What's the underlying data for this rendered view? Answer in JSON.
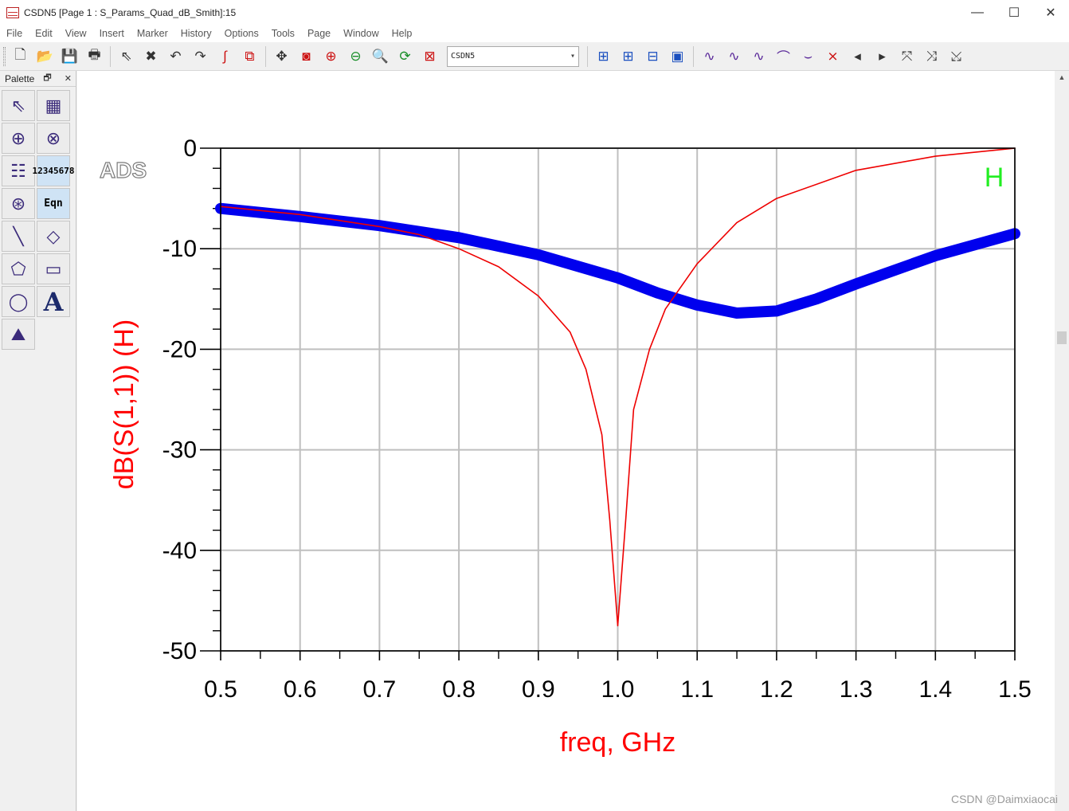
{
  "window": {
    "title": "CSDN5 [Page 1 : S_Params_Quad_dB_Smith]:15",
    "minimize": "—",
    "maximize": "☐",
    "close": "✕"
  },
  "menu": [
    "File",
    "Edit",
    "View",
    "Insert",
    "Marker",
    "History",
    "Options",
    "Tools",
    "Page",
    "Window",
    "Help"
  ],
  "toolbar": {
    "dataset": "CSDN5",
    "icons": [
      "new-icon",
      "open-icon",
      "save-icon",
      "print-icon",
      "select-icon",
      "delete-icon",
      "undo-icon",
      "redo-icon",
      "trace-icon",
      "plot-options-icon",
      "pan-icon",
      "zoom-area-icon",
      "zoom-in-icon",
      "zoom-out-icon",
      "zoom-icon",
      "refresh-icon",
      "cancel-icon",
      "view-all-icon",
      "zoom-plus-icon",
      "zoom-minus-icon",
      "zoom-window-icon",
      "marker-icon",
      "marker-peak-icon",
      "marker-min-icon",
      "marker-max-icon",
      "marker-valley-icon",
      "marker-delta-icon",
      "prev-icon",
      "next-icon",
      "trace-a-icon",
      "trace-b-icon",
      "trace-c-icon"
    ]
  },
  "palette": {
    "title": "Palette",
    "float": "🗗",
    "close": "✕",
    "number_icon": [
      "1234",
      "5678"
    ],
    "eqn_label": "Eqn",
    "text_tool": "A"
  },
  "logo": "ADS",
  "watermark": "CSDN @Daimxiaocai",
  "chart_data": {
    "type": "line",
    "xlabel": "freq, GHz",
    "ylabel": "dB(S(1,1))  (H)",
    "legend": "H",
    "xlim": [
      0.5,
      1.5
    ],
    "ylim": [
      -50,
      0
    ],
    "xticks": [
      0.5,
      0.6,
      0.7,
      0.8,
      0.9,
      1.0,
      1.1,
      1.2,
      1.3,
      1.4,
      1.5
    ],
    "xtick_labels": [
      "0.5",
      "0.6",
      "0.7",
      "0.8",
      "0.9",
      "1.0",
      "1.1",
      "1.2",
      "1.3",
      "1.4",
      "1.5"
    ],
    "yticks": [
      0,
      -10,
      -20,
      -30,
      -40,
      -50
    ],
    "ytick_labels": [
      "0",
      "-10",
      "-20",
      "-30",
      "-40",
      "-50"
    ],
    "grid": true,
    "colors": {
      "axis_label": "#ff0000",
      "legend": "#22ee22",
      "grid": "#bfbfbf"
    },
    "series": [
      {
        "color": "#0000ee",
        "width": "thick",
        "x": [
          0.5,
          0.6,
          0.7,
          0.8,
          0.9,
          1.0,
          1.05,
          1.1,
          1.15,
          1.2,
          1.25,
          1.3,
          1.4,
          1.5
        ],
        "y": [
          -6.0,
          -6.8,
          -7.7,
          -8.9,
          -10.6,
          -12.9,
          -14.4,
          -15.6,
          -16.4,
          -16.2,
          -15.0,
          -13.5,
          -10.7,
          -8.5
        ]
      },
      {
        "color": "#ee0000",
        "width": "thin",
        "x": [
          0.5,
          0.6,
          0.7,
          0.75,
          0.8,
          0.85,
          0.9,
          0.94,
          0.96,
          0.98,
          0.99,
          1.0,
          1.01,
          1.02,
          1.04,
          1.06,
          1.1,
          1.15,
          1.2,
          1.3,
          1.4,
          1.5
        ],
        "y": [
          -5.8,
          -6.6,
          -7.8,
          -8.6,
          -10.0,
          -11.8,
          -14.7,
          -18.3,
          -22.0,
          -28.5,
          -37.0,
          -47.5,
          -37.0,
          -26.0,
          -20.0,
          -16.0,
          -11.5,
          -7.4,
          -5.0,
          -2.2,
          -0.8,
          0.0
        ]
      }
    ]
  }
}
